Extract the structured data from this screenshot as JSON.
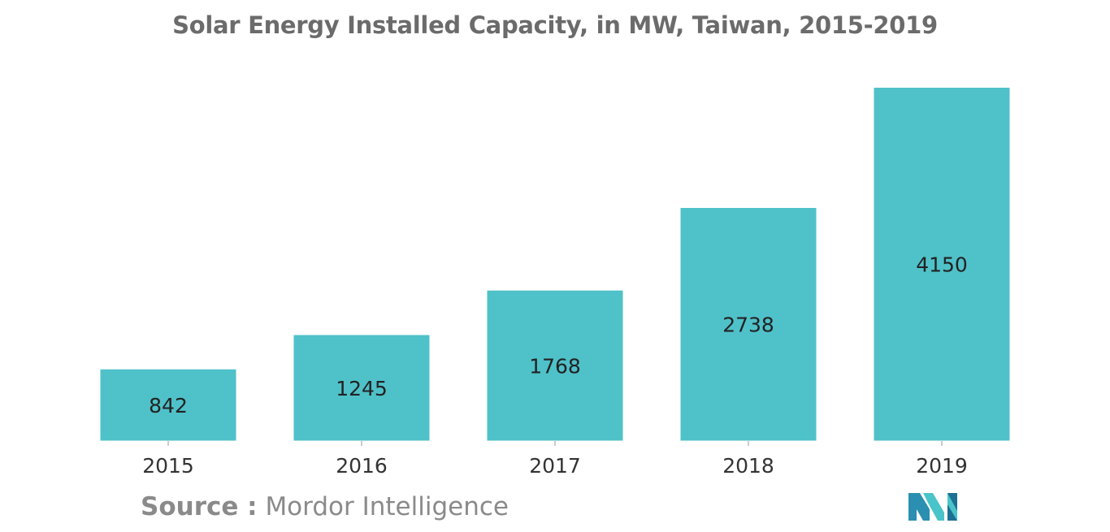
{
  "chart_data": {
    "type": "bar",
    "title": "Solar Energy Installed Capacity, in MW, Taiwan, 2015-2019",
    "xlabel": "",
    "ylabel": "",
    "categories": [
      "2015",
      "2016",
      "2017",
      "2018",
      "2019"
    ],
    "values": [
      842,
      1245,
      1768,
      2738,
      4150
    ],
    "ylim": [
      0,
      4150
    ],
    "grid": false,
    "legend": "none",
    "bar_color": "#4fc1c9",
    "label_color": "#222222",
    "tick_color": "#333333"
  },
  "source": {
    "label": "Source :",
    "text": "Mordor Intelligence"
  },
  "logo": {
    "icon": "mordor-intelligence-logo-icon",
    "colors": [
      "#2a8fb0",
      "#49c4c9",
      "#1d6f94"
    ]
  }
}
